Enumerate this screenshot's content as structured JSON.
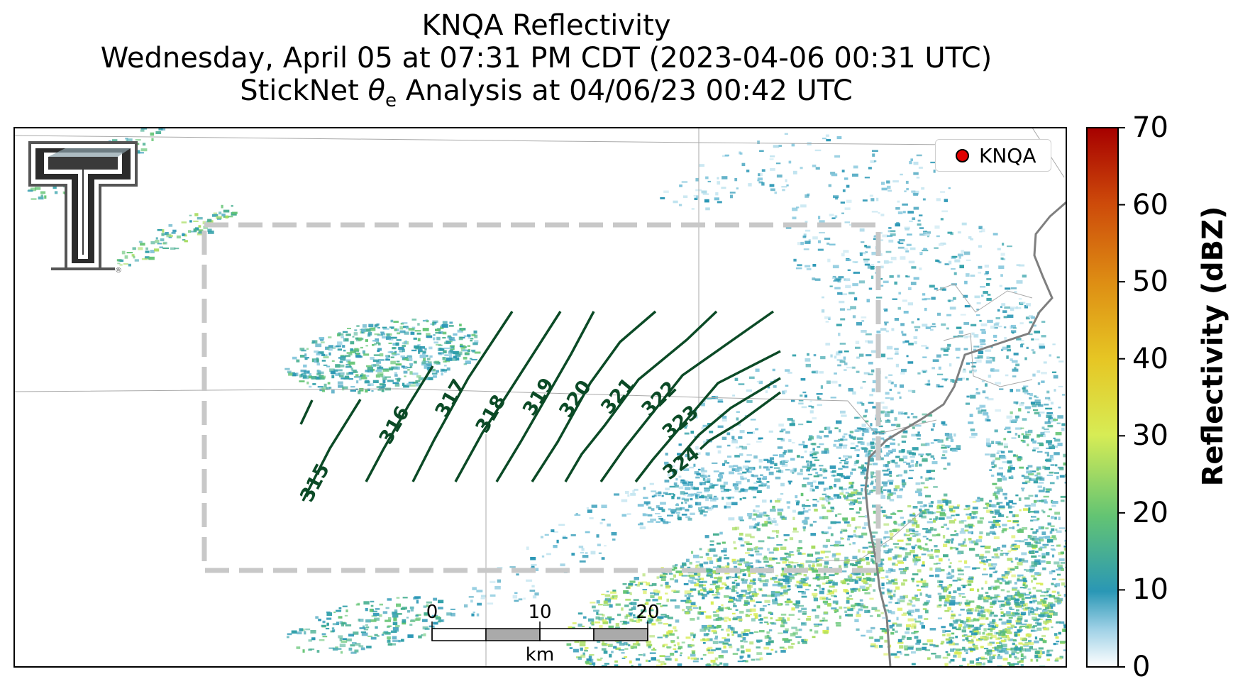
{
  "title": {
    "line1": "KNQA Reflectivity",
    "line2": "Wednesday, April 05 at 07:31 PM CDT (2023-04-06 00:31 UTC)",
    "line3_prefix": "StickNet ",
    "line3_symbol": "θ",
    "line3_subscript": "e",
    "line3_suffix": " Analysis at 04/06/23 00:42 UTC"
  },
  "legend": {
    "label": "KNQA",
    "marker_color": "#e00000"
  },
  "colorbar": {
    "title": "Reflectivity (dBZ)",
    "ticks": [
      "0",
      "10",
      "20",
      "30",
      "40",
      "50",
      "60",
      "70"
    ],
    "stops": [
      "#ffffff",
      "#2a97b5",
      "#63c473",
      "#d7ec55",
      "#e6c624",
      "#de8f14",
      "#cd4a0a",
      "#a60000"
    ]
  },
  "contours": {
    "color": "#0b4a26",
    "labels": [
      "315",
      "316",
      "317",
      "318",
      "319",
      "320",
      "321",
      "322",
      "323",
      "324"
    ]
  },
  "scale_bar": {
    "ticks": [
      "0",
      "10",
      "20"
    ],
    "unit": "km"
  },
  "colors": {
    "analysis_box": "#c8c8c8",
    "boundary": "#999999",
    "river": "#777777"
  }
}
